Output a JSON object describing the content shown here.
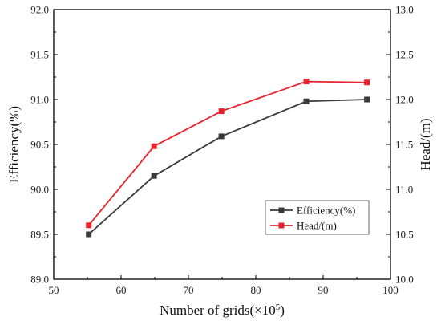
{
  "chart_data": {
    "type": "line",
    "title": "",
    "xlabel": "Number of grids(×10",
    "xlabel_sup": "5",
    "xlabel_close": ")",
    "ylabel_left": "Efficiency(%)",
    "ylabel_right": "Head/(m)",
    "xlim": [
      50,
      100
    ],
    "ylim_left": [
      89.0,
      92.0
    ],
    "ylim_right": [
      10.0,
      13.0
    ],
    "x_ticks": [
      "50",
      "60",
      "70",
      "80",
      "90",
      "100"
    ],
    "y_left_ticks": [
      "89.0",
      "89.5",
      "90.0",
      "90.5",
      "91.0",
      "91.5",
      "92.0"
    ],
    "y_right_ticks": [
      "10.0",
      "10.5",
      "11.0",
      "11.5",
      "12.0",
      "12.5",
      "13.0"
    ],
    "grid": false,
    "legend_position": "lower-right",
    "series": [
      {
        "name": "Efficiency(%)",
        "axis": "left",
        "color": "#3a3a3a",
        "marker": "square",
        "x": [
          55.2,
          64.9,
          74.9,
          87.5,
          96.5
        ],
        "y": [
          89.5,
          90.15,
          90.59,
          90.98,
          91.0
        ]
      },
      {
        "name": "Head/(m)",
        "axis": "right",
        "color": "#e8222a",
        "marker": "square",
        "x": [
          55.2,
          64.9,
          74.9,
          87.5,
          96.5
        ],
        "y": [
          10.6,
          11.48,
          11.87,
          12.2,
          12.19
        ]
      }
    ]
  }
}
